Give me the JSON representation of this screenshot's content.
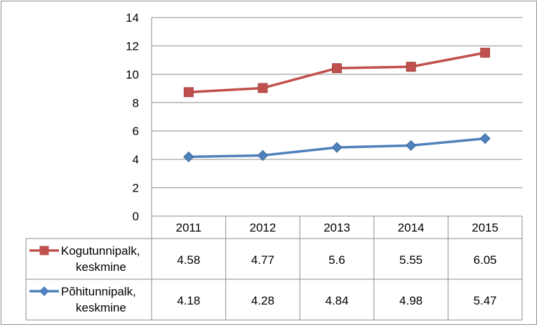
{
  "chart_data": {
    "type": "line",
    "categories": [
      "2011",
      "2012",
      "2013",
      "2014",
      "2015"
    ],
    "ylim": [
      0,
      14
    ],
    "yticks": [
      "0",
      "2",
      "4",
      "6",
      "8",
      "10",
      "12",
      "14"
    ],
    "grid": true,
    "legend": "data-table",
    "series": [
      {
        "name_line1": "Kogutunnipalk,",
        "name_line2": "keskmine",
        "color": "#c0504d",
        "marker": "square",
        "plotted_values": [
          8.74,
          9.03,
          10.43,
          10.53,
          11.52
        ],
        "table_values": [
          "4.58",
          "4.77",
          "5.6",
          "5.55",
          "6.05"
        ]
      },
      {
        "name_line1": "Põhitunnipalk,",
        "name_line2": "keskmine",
        "color": "#4f81bd",
        "marker": "diamond",
        "plotted_values": [
          4.18,
          4.28,
          4.84,
          4.98,
          5.47
        ],
        "table_values": [
          "4.18",
          "4.28",
          "4.84",
          "4.98",
          "5.47"
        ]
      }
    ]
  }
}
